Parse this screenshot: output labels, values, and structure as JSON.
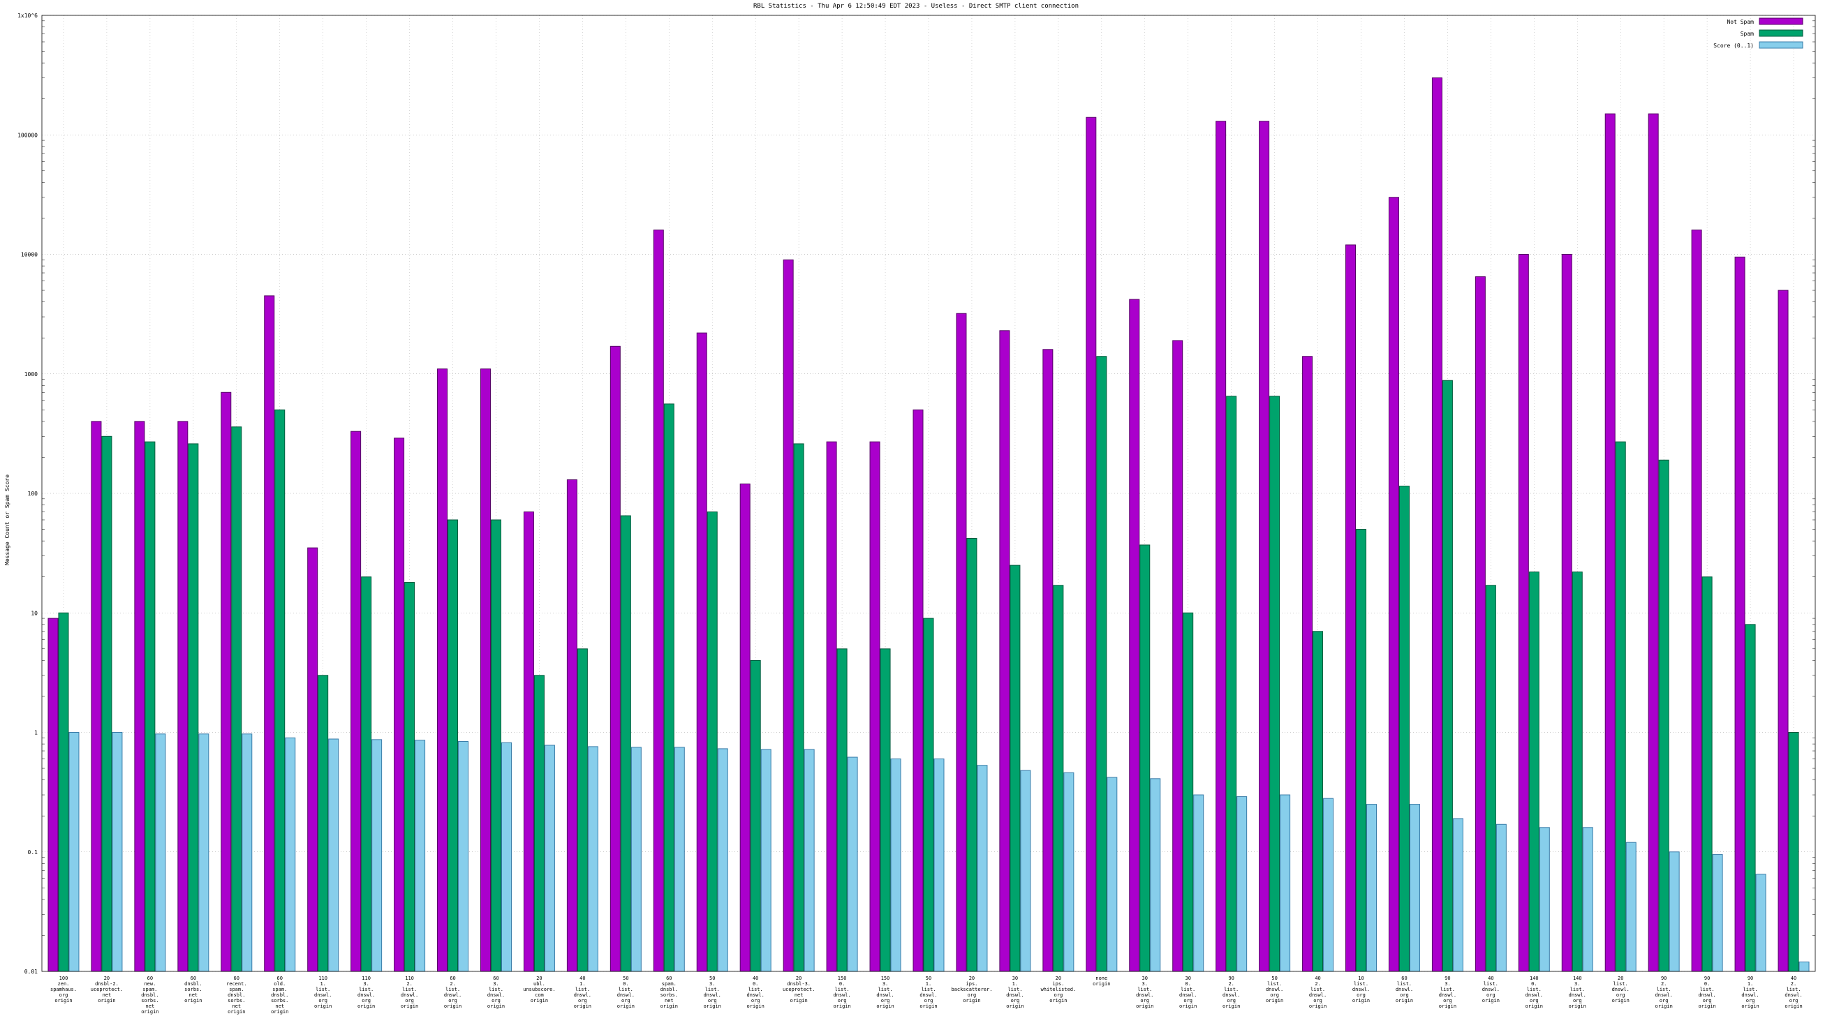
{
  "title": "RBL Statistics - Thu Apr  6 12:50:49 EDT 2023 - Useless - Direct SMTP client connection",
  "ylabel": "Message Count or Spam Score",
  "legend": [
    {
      "label": "Not Spam",
      "color": "#aa00cc",
      "border": "#550066"
    },
    {
      "label": "Spam",
      "color": "#00a36c",
      "border": "#005a3c"
    },
    {
      "label": "Score (0..1)",
      "color": "#87ceeb",
      "border": "#3a7ca8"
    }
  ],
  "chart_data": {
    "type": "bar",
    "ylog": true,
    "ylim": [
      0.01,
      1000000
    ],
    "grid": true,
    "legend_position": "top-right",
    "yticks": [
      "0.01",
      "0.1",
      "1",
      "10",
      "100",
      "1000",
      "10000",
      "100000",
      "1x10^6"
    ],
    "categories": [
      [
        "100",
        "zen.",
        "spamhaus.",
        "org",
        "origin"
      ],
      [
        "20",
        "dnsbl-2.",
        "uceprotect.",
        "net",
        "origin"
      ],
      [
        "60",
        "new.",
        "spam.",
        "dnsbl.",
        "sorbs.",
        "net",
        "origin"
      ],
      [
        "60",
        "dnsbl.",
        "sorbs.",
        "net",
        "origin"
      ],
      [
        "60",
        "recent.",
        "spam.",
        "dnsbl.",
        "sorbs.",
        "net",
        "origin"
      ],
      [
        "60",
        "old.",
        "spam.",
        "dnsbl.",
        "sorbs.",
        "net",
        "origin"
      ],
      [
        "110",
        "1.",
        "list.",
        "dnswl.",
        "org",
        "origin"
      ],
      [
        "110",
        "3.",
        "list.",
        "dnswl.",
        "org",
        "origin"
      ],
      [
        "110",
        "2.",
        "list.",
        "dnswl.",
        "org",
        "origin"
      ],
      [
        "60",
        "2.",
        "list.",
        "dnswl.",
        "org",
        "origin"
      ],
      [
        "60",
        "3.",
        "list.",
        "dnswl.",
        "org",
        "origin"
      ],
      [
        "20",
        "ubl.",
        "unsubscore.",
        "com",
        "origin"
      ],
      [
        "40",
        "1.",
        "list.",
        "dnswl.",
        "org",
        "origin"
      ],
      [
        "50",
        "0.",
        "list.",
        "dnswl.",
        "org",
        "origin"
      ],
      [
        "60",
        "spam.",
        "dnsbl.",
        "sorbs.",
        "net",
        "origin"
      ],
      [
        "50",
        "3.",
        "list.",
        "dnswl.",
        "org",
        "origin"
      ],
      [
        "40",
        "0.",
        "list.",
        "dnswl.",
        "org",
        "origin"
      ],
      [
        "20",
        "dnsbl-3.",
        "uceprotect.",
        "net",
        "origin"
      ],
      [
        "150",
        "0.",
        "list.",
        "dnswl.",
        "org",
        "origin"
      ],
      [
        "150",
        "3.",
        "list.",
        "dnswl.",
        "org",
        "origin"
      ],
      [
        "50",
        "1.",
        "list.",
        "dnswl.",
        "org",
        "origin"
      ],
      [
        "20",
        "ips.",
        "backscatterer.",
        "org",
        "origin"
      ],
      [
        "30",
        "1.",
        "list.",
        "dnswl.",
        "org",
        "origin"
      ],
      [
        "20",
        "ips.",
        "whitelisted.",
        "org",
        "origin"
      ],
      [
        "none",
        "origin"
      ],
      [
        "30",
        "3.",
        "list.",
        "dnswl.",
        "org",
        "origin"
      ],
      [
        "30",
        "0.",
        "list.",
        "dnswl.",
        "org",
        "origin"
      ],
      [
        "90",
        "2.",
        "list.",
        "dnswl.",
        "org",
        "origin"
      ],
      [
        "50",
        "list.",
        "dnswl.",
        "org",
        "origin"
      ],
      [
        "40",
        "2.",
        "list.",
        "dnswl.",
        "org",
        "origin"
      ],
      [
        "10",
        "list.",
        "dnswl.",
        "org",
        "origin"
      ],
      [
        "60",
        "list.",
        "dnswl.",
        "org",
        "origin"
      ],
      [
        "90",
        "3.",
        "list.",
        "dnswl.",
        "org",
        "origin"
      ],
      [
        "40",
        "list.",
        "dnswl.",
        "org",
        "origin"
      ],
      [
        "140",
        "0.",
        "list.",
        "dnswl.",
        "org",
        "origin"
      ],
      [
        "140",
        "3.",
        "list.",
        "dnswl.",
        "org",
        "origin"
      ],
      [
        "20",
        "list.",
        "dnswl.",
        "org",
        "origin"
      ],
      [
        "90",
        "2.",
        "list.",
        "dnswl.",
        "org",
        "origin"
      ],
      [
        "90",
        "0.",
        "list.",
        "dnswl.",
        "org",
        "origin"
      ],
      [
        "90",
        "1.",
        "list.",
        "dnswl.",
        "org",
        "origin"
      ],
      [
        "40",
        "2.",
        "list.",
        "dnswl.",
        "org",
        "origin"
      ]
    ],
    "series": [
      {
        "name": "Not Spam",
        "color": "#aa00cc",
        "border": "#550066",
        "values": [
          9,
          400,
          400,
          400,
          700,
          4500,
          35,
          330,
          290,
          1100,
          1100,
          70,
          130,
          1700,
          16000,
          2200,
          120,
          9000,
          270,
          270,
          500,
          3200,
          2300,
          1600,
          140000,
          4200,
          1900,
          130000,
          130000,
          1400,
          12000,
          30000,
          300000,
          6500,
          10000,
          10000,
          150000,
          150000,
          16000,
          9500,
          5000
        ]
      },
      {
        "name": "Spam",
        "color": "#00a36c",
        "border": "#005a3c",
        "values": [
          10,
          300,
          270,
          260,
          360,
          500,
          3,
          20,
          18,
          60,
          60,
          3,
          5,
          65,
          560,
          70,
          4,
          260,
          5,
          5,
          9,
          42,
          25,
          17,
          1400,
          37,
          10,
          650,
          650,
          7,
          50,
          115,
          880,
          17,
          22,
          22,
          270,
          190,
          20,
          8,
          1
        ]
      },
      {
        "name": "Score (0..1)",
        "color": "#87ceeb",
        "border": "#3a7ca8",
        "values": [
          1.0,
          1.0,
          0.97,
          0.97,
          0.97,
          0.9,
          0.88,
          0.87,
          0.86,
          0.84,
          0.82,
          0.78,
          0.76,
          0.75,
          0.75,
          0.73,
          0.72,
          0.72,
          0.62,
          0.6,
          0.6,
          0.53,
          0.48,
          0.46,
          0.42,
          0.41,
          0.3,
          0.29,
          0.3,
          0.28,
          0.25,
          0.25,
          0.19,
          0.17,
          0.16,
          0.16,
          0.12,
          0.1,
          0.095,
          0.065,
          0.012
        ]
      }
    ]
  }
}
